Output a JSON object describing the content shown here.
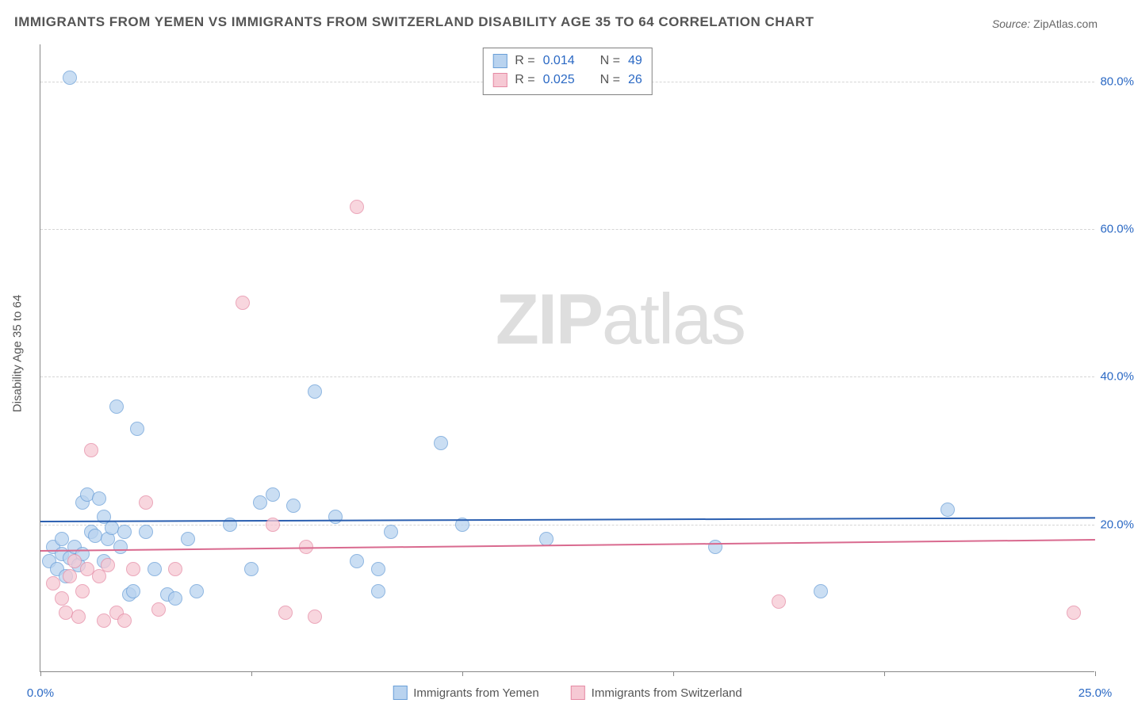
{
  "title": "IMMIGRANTS FROM YEMEN VS IMMIGRANTS FROM SWITZERLAND DISABILITY AGE 35 TO 64 CORRELATION CHART",
  "source_label": "Source:",
  "source_value": "ZipAtlas.com",
  "y_axis_title": "Disability Age 35 to 64",
  "watermark_bold": "ZIP",
  "watermark_light": "atlas",
  "chart": {
    "type": "scatter",
    "xlim": [
      0,
      25
    ],
    "ylim": [
      0,
      85
    ],
    "x_ticks": [
      0,
      5,
      10,
      15,
      20,
      25
    ],
    "x_tick_labels": [
      "0.0%",
      "",
      "",
      "",
      "",
      "25.0%"
    ],
    "y_ticks": [
      20,
      40,
      60,
      80
    ],
    "y_tick_labels": [
      "20.0%",
      "40.0%",
      "60.0%",
      "80.0%"
    ],
    "background_color": "#ffffff",
    "grid_color": "#d5d5d5",
    "axis_color": "#888888",
    "marker_radius": 9,
    "marker_opacity": 0.75,
    "series": [
      {
        "key": "yemen",
        "label": "Immigrants from Yemen",
        "fill": "#b9d3ef",
        "stroke": "#6a9fd8",
        "line_color": "#2b5fb0",
        "r": "0.014",
        "n": "49",
        "trend": {
          "y_at_x0": 20.5,
          "y_at_xmax": 21.0
        },
        "points": [
          [
            0.2,
            15
          ],
          [
            0.3,
            17
          ],
          [
            0.4,
            14
          ],
          [
            0.5,
            18
          ],
          [
            0.5,
            16
          ],
          [
            0.6,
            13
          ],
          [
            0.7,
            15.5
          ],
          [
            0.7,
            80.5
          ],
          [
            0.8,
            17
          ],
          [
            0.9,
            14.5
          ],
          [
            1.0,
            16
          ],
          [
            1.0,
            23
          ],
          [
            1.1,
            24
          ],
          [
            1.2,
            19
          ],
          [
            1.3,
            18.5
          ],
          [
            1.4,
            23.5
          ],
          [
            1.5,
            15
          ],
          [
            1.5,
            21
          ],
          [
            1.6,
            18
          ],
          [
            1.7,
            19.5
          ],
          [
            1.8,
            36
          ],
          [
            1.9,
            17
          ],
          [
            2.0,
            19
          ],
          [
            2.1,
            10.5
          ],
          [
            2.2,
            11
          ],
          [
            2.3,
            33
          ],
          [
            2.5,
            19
          ],
          [
            2.7,
            14
          ],
          [
            3.0,
            10.5
          ],
          [
            3.2,
            10
          ],
          [
            3.5,
            18
          ],
          [
            3.7,
            11
          ],
          [
            4.5,
            20
          ],
          [
            5.0,
            14
          ],
          [
            5.2,
            23
          ],
          [
            5.5,
            24
          ],
          [
            6.0,
            22.5
          ],
          [
            6.5,
            38
          ],
          [
            7.0,
            21
          ],
          [
            7.5,
            15
          ],
          [
            8.0,
            14
          ],
          [
            8.0,
            11
          ],
          [
            8.3,
            19
          ],
          [
            9.5,
            31
          ],
          [
            10.0,
            20
          ],
          [
            12.0,
            18
          ],
          [
            16.0,
            17
          ],
          [
            18.5,
            11
          ],
          [
            21.5,
            22
          ]
        ]
      },
      {
        "key": "switzerland",
        "label": "Immigrants from Switzerland",
        "fill": "#f6c9d4",
        "stroke": "#e58aa4",
        "line_color": "#d96a8f",
        "r": "0.025",
        "n": "26",
        "trend": {
          "y_at_x0": 16.5,
          "y_at_xmax": 18.0
        },
        "points": [
          [
            0.3,
            12
          ],
          [
            0.5,
            10
          ],
          [
            0.6,
            8
          ],
          [
            0.7,
            13
          ],
          [
            0.8,
            15
          ],
          [
            0.9,
            7.5
          ],
          [
            1.0,
            11
          ],
          [
            1.1,
            14
          ],
          [
            1.2,
            30
          ],
          [
            1.4,
            13
          ],
          [
            1.5,
            7
          ],
          [
            1.6,
            14.5
          ],
          [
            1.8,
            8
          ],
          [
            2.0,
            7
          ],
          [
            2.2,
            14
          ],
          [
            2.5,
            23
          ],
          [
            2.8,
            8.5
          ],
          [
            3.2,
            14
          ],
          [
            4.8,
            50
          ],
          [
            5.5,
            20
          ],
          [
            5.8,
            8
          ],
          [
            6.3,
            17
          ],
          [
            6.5,
            7.5
          ],
          [
            7.5,
            63
          ],
          [
            17.5,
            9.5
          ],
          [
            24.5,
            8
          ]
        ]
      }
    ]
  },
  "legend_stats": [
    {
      "series_key": "yemen",
      "r_label": "R =",
      "r_value": "0.014",
      "n_label": "N =",
      "n_value": "49"
    },
    {
      "series_key": "switzerland",
      "r_label": "R =",
      "r_value": "0.025",
      "n_label": "N =",
      "n_value": "26"
    }
  ]
}
